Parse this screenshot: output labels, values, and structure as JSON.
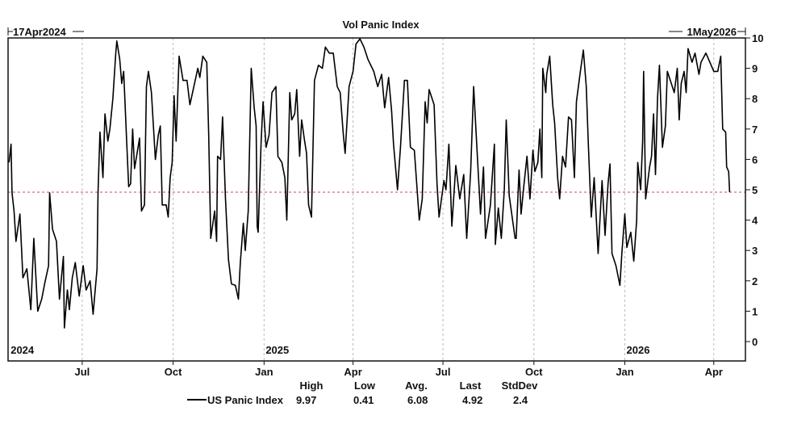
{
  "chart_data": {
    "type": "line",
    "title": "Vol Panic Index",
    "start_label": "17Apr2024",
    "end_label": "1May2026",
    "xlabel": "",
    "ylabel": "",
    "x_unit": "days since 17 Apr 2024",
    "xlim": [
      0,
      746
    ],
    "ylim": [
      0,
      10
    ],
    "yticks": [
      0,
      1,
      2,
      3,
      4,
      5,
      6,
      7,
      8,
      9,
      10
    ],
    "y_axis_side": "right",
    "grid": "vertical dashed at month ticks",
    "month_ticks": [
      {
        "label": "Jul",
        "day": 75
      },
      {
        "label": "Oct",
        "day": 167
      },
      {
        "label": "Jan",
        "day": 259
      },
      {
        "label": "Apr",
        "day": 349
      },
      {
        "label": "Jul",
        "day": 440
      },
      {
        "label": "Oct",
        "day": 532
      },
      {
        "label": "Jan",
        "day": 624
      },
      {
        "label": "Apr",
        "day": 714
      }
    ],
    "year_labels": [
      {
        "label": "2024",
        "day": 1
      },
      {
        "label": "2025",
        "day": 259
      },
      {
        "label": "2026",
        "day": 624
      }
    ],
    "reference_line": {
      "value": 4.92,
      "color": "#c0504d",
      "style": "dashed"
    },
    "series": [
      {
        "name": "US Panic Index",
        "color": "#000000",
        "points": [
          [
            1,
            5.9
          ],
          [
            3,
            6.5
          ],
          [
            4,
            4.9
          ],
          [
            6,
            4.3
          ],
          [
            8,
            3.3
          ],
          [
            12,
            4.2
          ],
          [
            15,
            2.1
          ],
          [
            19,
            2.4
          ],
          [
            23,
            1.05
          ],
          [
            26,
            3.4
          ],
          [
            30,
            1.0
          ],
          [
            34,
            1.4
          ],
          [
            37,
            1.9
          ],
          [
            41,
            2.5
          ],
          [
            42,
            4.9
          ],
          [
            45,
            3.7
          ],
          [
            49,
            3.3
          ],
          [
            52,
            1.4
          ],
          [
            56,
            2.8
          ],
          [
            57,
            0.45
          ],
          [
            60,
            1.7
          ],
          [
            62,
            1.05
          ],
          [
            65,
            2.1
          ],
          [
            68,
            2.6
          ],
          [
            72,
            1.5
          ],
          [
            76,
            2.5
          ],
          [
            79,
            1.7
          ],
          [
            83,
            2.0
          ],
          [
            86,
            0.9
          ],
          [
            90,
            2.4
          ],
          [
            91,
            4.9
          ],
          [
            93,
            6.9
          ],
          [
            96,
            5.4
          ],
          [
            98,
            7.5
          ],
          [
            101,
            6.6
          ],
          [
            103,
            7.0
          ],
          [
            106,
            8.0
          ],
          [
            109,
            9.5
          ],
          [
            110,
            9.9
          ],
          [
            113,
            9.3
          ],
          [
            115,
            8.5
          ],
          [
            117,
            8.9
          ],
          [
            120,
            6.6
          ],
          [
            122,
            5.1
          ],
          [
            124,
            5.2
          ],
          [
            126,
            7.0
          ],
          [
            128,
            5.7
          ],
          [
            131,
            6.3
          ],
          [
            133,
            6.7
          ],
          [
            135,
            4.3
          ],
          [
            138,
            4.5
          ],
          [
            140,
            8.4
          ],
          [
            142,
            8.9
          ],
          [
            145,
            8.2
          ],
          [
            149,
            6.0
          ],
          [
            152,
            6.8
          ],
          [
            154,
            7.1
          ],
          [
            156,
            4.5
          ],
          [
            160,
            4.5
          ],
          [
            162,
            4.1
          ],
          [
            164,
            5.4
          ],
          [
            166,
            5.9
          ],
          [
            168,
            8.1
          ],
          [
            170,
            6.6
          ],
          [
            173,
            9.4
          ],
          [
            177,
            8.6
          ],
          [
            181,
            8.6
          ],
          [
            184,
            7.8
          ],
          [
            188,
            8.4
          ],
          [
            192,
            9.0
          ],
          [
            194,
            8.7
          ],
          [
            197,
            9.4
          ],
          [
            201,
            9.2
          ],
          [
            203,
            6.8
          ],
          [
            205,
            3.4
          ],
          [
            209,
            4.3
          ],
          [
            211,
            3.3
          ],
          [
            212,
            6.1
          ],
          [
            215,
            6.0
          ],
          [
            217,
            7.4
          ],
          [
            220,
            4.7
          ],
          [
            223,
            2.7
          ],
          [
            226,
            1.9
          ],
          [
            230,
            1.85
          ],
          [
            233,
            1.4
          ],
          [
            235,
            2.6
          ],
          [
            238,
            3.9
          ],
          [
            240,
            3.0
          ],
          [
            243,
            4.3
          ],
          [
            246,
            9.0
          ],
          [
            249,
            7.7
          ],
          [
            251,
            7.1
          ],
          [
            252,
            3.8
          ],
          [
            253,
            3.6
          ],
          [
            256,
            6.6
          ],
          [
            258,
            7.9
          ],
          [
            261,
            6.4
          ],
          [
            264,
            6.8
          ],
          [
            267,
            8.2
          ],
          [
            271,
            8.4
          ],
          [
            273,
            6.1
          ],
          [
            277,
            5.9
          ],
          [
            280,
            5.4
          ],
          [
            282,
            4.0
          ],
          [
            285,
            8.2
          ],
          [
            287,
            7.3
          ],
          [
            290,
            7.5
          ],
          [
            292,
            8.3
          ],
          [
            295,
            6.1
          ],
          [
            297,
            7.3
          ],
          [
            300,
            6.6
          ],
          [
            302,
            6.2
          ],
          [
            304,
            4.5
          ],
          [
            307,
            4.1
          ],
          [
            310,
            8.6
          ],
          [
            314,
            9.1
          ],
          [
            318,
            9.0
          ],
          [
            321,
            9.7
          ],
          [
            325,
            9.5
          ],
          [
            329,
            9.5
          ],
          [
            333,
            8.4
          ],
          [
            336,
            8.2
          ],
          [
            339,
            6.9
          ],
          [
            341,
            6.2
          ],
          [
            345,
            8.4
          ],
          [
            349,
            8.9
          ],
          [
            352,
            9.8
          ],
          [
            356,
            9.97
          ],
          [
            360,
            9.7
          ],
          [
            364,
            9.3
          ],
          [
            370,
            8.9
          ],
          [
            374,
            8.4
          ],
          [
            378,
            8.8
          ],
          [
            381,
            7.7
          ],
          [
            385,
            8.7
          ],
          [
            388,
            7.6
          ],
          [
            390,
            6.5
          ],
          [
            394,
            5.0
          ],
          [
            397,
            6.4
          ],
          [
            401,
            8.6
          ],
          [
            404,
            8.6
          ],
          [
            407,
            6.4
          ],
          [
            411,
            6.3
          ],
          [
            413,
            5.4
          ],
          [
            416,
            4.0
          ],
          [
            419,
            4.7
          ],
          [
            422,
            7.9
          ],
          [
            424,
            7.2
          ],
          [
            426,
            8.3
          ],
          [
            431,
            7.8
          ],
          [
            434,
            5.2
          ],
          [
            436,
            4.1
          ],
          [
            441,
            5.3
          ],
          [
            443,
            5.0
          ],
          [
            446,
            6.5
          ],
          [
            449,
            3.8
          ],
          [
            453,
            5.8
          ],
          [
            457,
            4.7
          ],
          [
            461,
            5.5
          ],
          [
            464,
            3.4
          ],
          [
            468,
            5.6
          ],
          [
            471,
            8.4
          ],
          [
            474,
            6.6
          ],
          [
            478,
            4.2
          ],
          [
            481,
            5.75
          ],
          [
            483,
            3.4
          ],
          [
            488,
            4.5
          ],
          [
            492,
            6.5
          ],
          [
            493,
            3.2
          ],
          [
            496,
            4.4
          ],
          [
            499,
            3.4
          ],
          [
            502,
            5.0
          ],
          [
            504,
            7.3
          ],
          [
            507,
            4.8
          ],
          [
            513,
            3.4
          ],
          [
            514,
            3.4
          ],
          [
            517,
            5.65
          ],
          [
            519,
            4.2
          ],
          [
            522,
            5.2
          ],
          [
            525,
            6.1
          ],
          [
            528,
            4.7
          ],
          [
            531,
            6.3
          ],
          [
            533,
            5.6
          ],
          [
            536,
            5.9
          ],
          [
            538,
            7.0
          ],
          [
            540,
            5.4
          ],
          [
            541,
            9.0
          ],
          [
            544,
            8.2
          ],
          [
            545,
            8.8
          ],
          [
            548,
            9.4
          ],
          [
            551,
            7.8
          ],
          [
            553,
            7.2
          ],
          [
            556,
            5.4
          ],
          [
            558,
            4.7
          ],
          [
            561,
            6.1
          ],
          [
            564,
            5.75
          ],
          [
            567,
            7.4
          ],
          [
            570,
            7.3
          ],
          [
            573,
            5.4
          ],
          [
            575,
            7.9
          ],
          [
            579,
            8.9
          ],
          [
            582,
            9.6
          ],
          [
            585,
            8.4
          ],
          [
            587,
            6.55
          ],
          [
            590,
            4.1
          ],
          [
            593,
            5.4
          ],
          [
            597,
            2.9
          ],
          [
            601,
            5.3
          ],
          [
            604,
            3.5
          ],
          [
            607,
            5.2
          ],
          [
            609,
            5.85
          ],
          [
            611,
            2.9
          ],
          [
            615,
            2.5
          ],
          [
            619,
            1.85
          ],
          [
            621,
            2.9
          ],
          [
            624,
            4.2
          ],
          [
            626,
            3.1
          ],
          [
            630,
            3.6
          ],
          [
            633,
            2.65
          ],
          [
            636,
            4.0
          ],
          [
            637,
            5.9
          ],
          [
            640,
            5.0
          ],
          [
            642,
            6.6
          ],
          [
            643,
            8.9
          ],
          [
            645,
            4.7
          ],
          [
            649,
            5.75
          ],
          [
            651,
            6.1
          ],
          [
            653,
            7.5
          ],
          [
            655,
            5.5
          ],
          [
            657,
            8.0
          ],
          [
            659,
            9.1
          ],
          [
            662,
            6.4
          ],
          [
            665,
            7.1
          ],
          [
            667,
            8.9
          ],
          [
            670,
            8.6
          ],
          [
            674,
            8.2
          ],
          [
            677,
            9.0
          ],
          [
            679,
            7.3
          ],
          [
            681,
            8.5
          ],
          [
            684,
            8.9
          ],
          [
            686,
            8.2
          ],
          [
            688,
            9.65
          ],
          [
            692,
            9.2
          ],
          [
            695,
            9.5
          ],
          [
            699,
            8.8
          ],
          [
            701,
            9.2
          ],
          [
            706,
            9.5
          ],
          [
            710,
            9.2
          ],
          [
            714,
            8.9
          ],
          [
            718,
            8.9
          ],
          [
            721,
            9.4
          ],
          [
            722,
            8.2
          ],
          [
            723,
            7.0
          ],
          [
            726,
            6.9
          ],
          [
            727,
            5.75
          ],
          [
            729,
            5.6
          ],
          [
            730,
            4.92
          ]
        ]
      }
    ],
    "legend": {
      "position": "bottom-center",
      "headers": [
        "High",
        "Low",
        "Avg.",
        "Last",
        "StdDev"
      ],
      "rows": [
        {
          "name": "US Panic Index",
          "values": [
            "9.97",
            "0.41",
            "6.08",
            "4.92",
            "2.4"
          ]
        }
      ]
    }
  }
}
